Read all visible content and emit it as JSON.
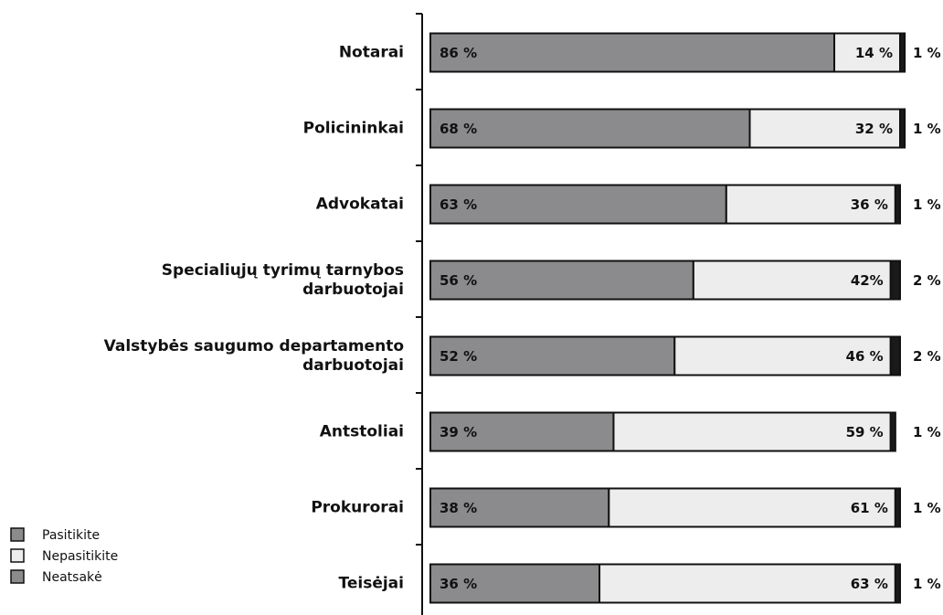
{
  "chart_data": {
    "type": "stacked-bar-horizontal",
    "categories": [
      "Notarai",
      "Policininkai",
      "Advokatai",
      "Specialiųjų tyrimų tarnybos\ndarbuotojai",
      "Valstybės saugumo departamento\ndarbuotojai",
      "Antstoliai",
      "Prokurorai",
      "Teisėjai"
    ],
    "series": [
      {
        "name": "Pasitikite",
        "color": "#8b8b8d",
        "values": [
          86,
          68,
          63,
          56,
          52,
          39,
          38,
          36
        ],
        "value_labels": [
          "86 %",
          "68 %",
          "63 %",
          "56 %",
          "52 %",
          "39 %",
          "38 %",
          "36 %"
        ]
      },
      {
        "name": "Nepasitikite",
        "color": "#ededee",
        "values": [
          14,
          32,
          36,
          42,
          46,
          59,
          61,
          63
        ],
        "value_labels": [
          "14 %",
          "32 %",
          "36 %",
          "42%",
          "46 %",
          "59 %",
          "61 %",
          "63 %"
        ]
      },
      {
        "name": "Neatsakė",
        "color": "#1a1a1a",
        "values": [
          1,
          1,
          1,
          2,
          2,
          1,
          1,
          1
        ],
        "value_labels": [
          "1 %",
          "1 %",
          "1 %",
          "2 %",
          "2 %",
          "1 %",
          "1 %",
          "1 %"
        ]
      }
    ],
    "xlim": [
      0,
      100
    ]
  }
}
